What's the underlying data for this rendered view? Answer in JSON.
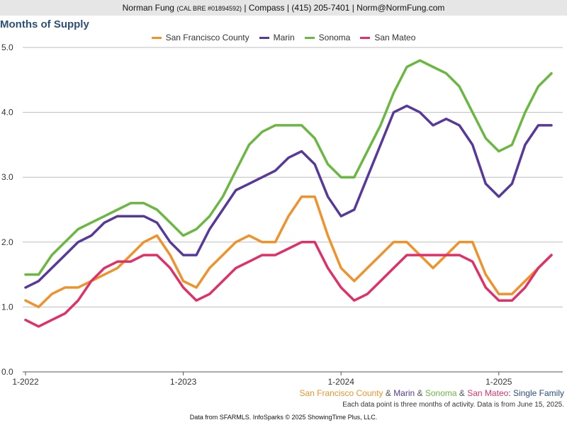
{
  "header": {
    "name": "Norman Fung",
    "license": "(CAL BRE #01894592)",
    "rest": "| Compass | (415) 205-7401 | Norm@NormFung.com"
  },
  "chart_data": {
    "type": "line",
    "title": "Months of Supply",
    "x": [
      "2022-01",
      "2022-02",
      "2022-03",
      "2022-04",
      "2022-05",
      "2022-06",
      "2022-07",
      "2022-08",
      "2022-09",
      "2022-10",
      "2022-11",
      "2022-12",
      "2023-01",
      "2023-02",
      "2023-03",
      "2023-04",
      "2023-05",
      "2023-06",
      "2023-07",
      "2023-08",
      "2023-09",
      "2023-10",
      "2023-11",
      "2023-12",
      "2024-01",
      "2024-02",
      "2024-03",
      "2024-04",
      "2024-05",
      "2024-06",
      "2024-07",
      "2024-08",
      "2024-09",
      "2024-10",
      "2024-11",
      "2024-12",
      "2025-01",
      "2025-02",
      "2025-03",
      "2025-04",
      "2025-05"
    ],
    "xticks": [
      "1-2022",
      "1-2023",
      "1-2024",
      "1-2025"
    ],
    "ylim": [
      0,
      5
    ],
    "yticks": [
      "0.0",
      "1.0",
      "2.0",
      "3.0",
      "4.0",
      "5.0"
    ],
    "grid": true,
    "legend_position": "top",
    "series": [
      {
        "name": "San Francisco County",
        "color": "#f0922b",
        "values": [
          1.1,
          1.0,
          1.2,
          1.3,
          1.3,
          1.4,
          1.5,
          1.6,
          1.8,
          2.0,
          2.1,
          1.8,
          1.4,
          1.3,
          1.6,
          1.8,
          2.0,
          2.1,
          2.0,
          2.0,
          2.4,
          2.7,
          2.7,
          2.1,
          1.6,
          1.4,
          1.6,
          1.8,
          2.0,
          2.0,
          1.8,
          1.6,
          1.8,
          2.0,
          2.0,
          1.5,
          1.2,
          1.2,
          1.4,
          1.6,
          1.8
        ]
      },
      {
        "name": "Marin",
        "color": "#56399a",
        "values": [
          1.3,
          1.4,
          1.6,
          1.8,
          2.0,
          2.1,
          2.3,
          2.4,
          2.4,
          2.4,
          2.3,
          2.0,
          1.8,
          1.8,
          2.2,
          2.5,
          2.8,
          2.9,
          3.0,
          3.1,
          3.3,
          3.4,
          3.2,
          2.7,
          2.4,
          2.5,
          3.0,
          3.5,
          4.0,
          4.1,
          4.0,
          3.8,
          3.9,
          3.8,
          3.5,
          2.9,
          2.7,
          2.9,
          3.5,
          3.8,
          3.8
        ]
      },
      {
        "name": "Sonoma",
        "color": "#6ab741",
        "values": [
          1.5,
          1.5,
          1.8,
          2.0,
          2.2,
          2.3,
          2.4,
          2.5,
          2.6,
          2.6,
          2.5,
          2.3,
          2.1,
          2.2,
          2.4,
          2.7,
          3.1,
          3.5,
          3.7,
          3.8,
          3.8,
          3.8,
          3.6,
          3.2,
          3.0,
          3.0,
          3.4,
          3.8,
          4.3,
          4.7,
          4.8,
          4.7,
          4.6,
          4.4,
          4.0,
          3.6,
          3.4,
          3.5,
          4.0,
          4.4,
          4.6
        ]
      },
      {
        "name": "San Mateo",
        "color": "#e0306a",
        "values": [
          0.8,
          0.7,
          0.8,
          0.9,
          1.1,
          1.4,
          1.6,
          1.7,
          1.7,
          1.8,
          1.8,
          1.6,
          1.3,
          1.1,
          1.2,
          1.4,
          1.6,
          1.7,
          1.8,
          1.8,
          1.9,
          2.0,
          2.0,
          1.6,
          1.3,
          1.1,
          1.2,
          1.4,
          1.6,
          1.8,
          1.8,
          1.8,
          1.8,
          1.8,
          1.7,
          1.3,
          1.1,
          1.1,
          1.3,
          1.6,
          1.8
        ]
      }
    ]
  },
  "subtitle": {
    "sf": "San Francisco County",
    "amp1": " & ",
    "marin": "Marin",
    "amp2": " & ",
    "sonoma": "Sonoma",
    "amp3": " & ",
    "sanmateo": "San Mateo",
    "suffix": ": Single Family"
  },
  "note": "Each data point is three months of activity. Data is from June 15, 2025.",
  "footer": "Data from SFARMLS. InfoSparks © 2025 ShowingTime Plus, LLC."
}
